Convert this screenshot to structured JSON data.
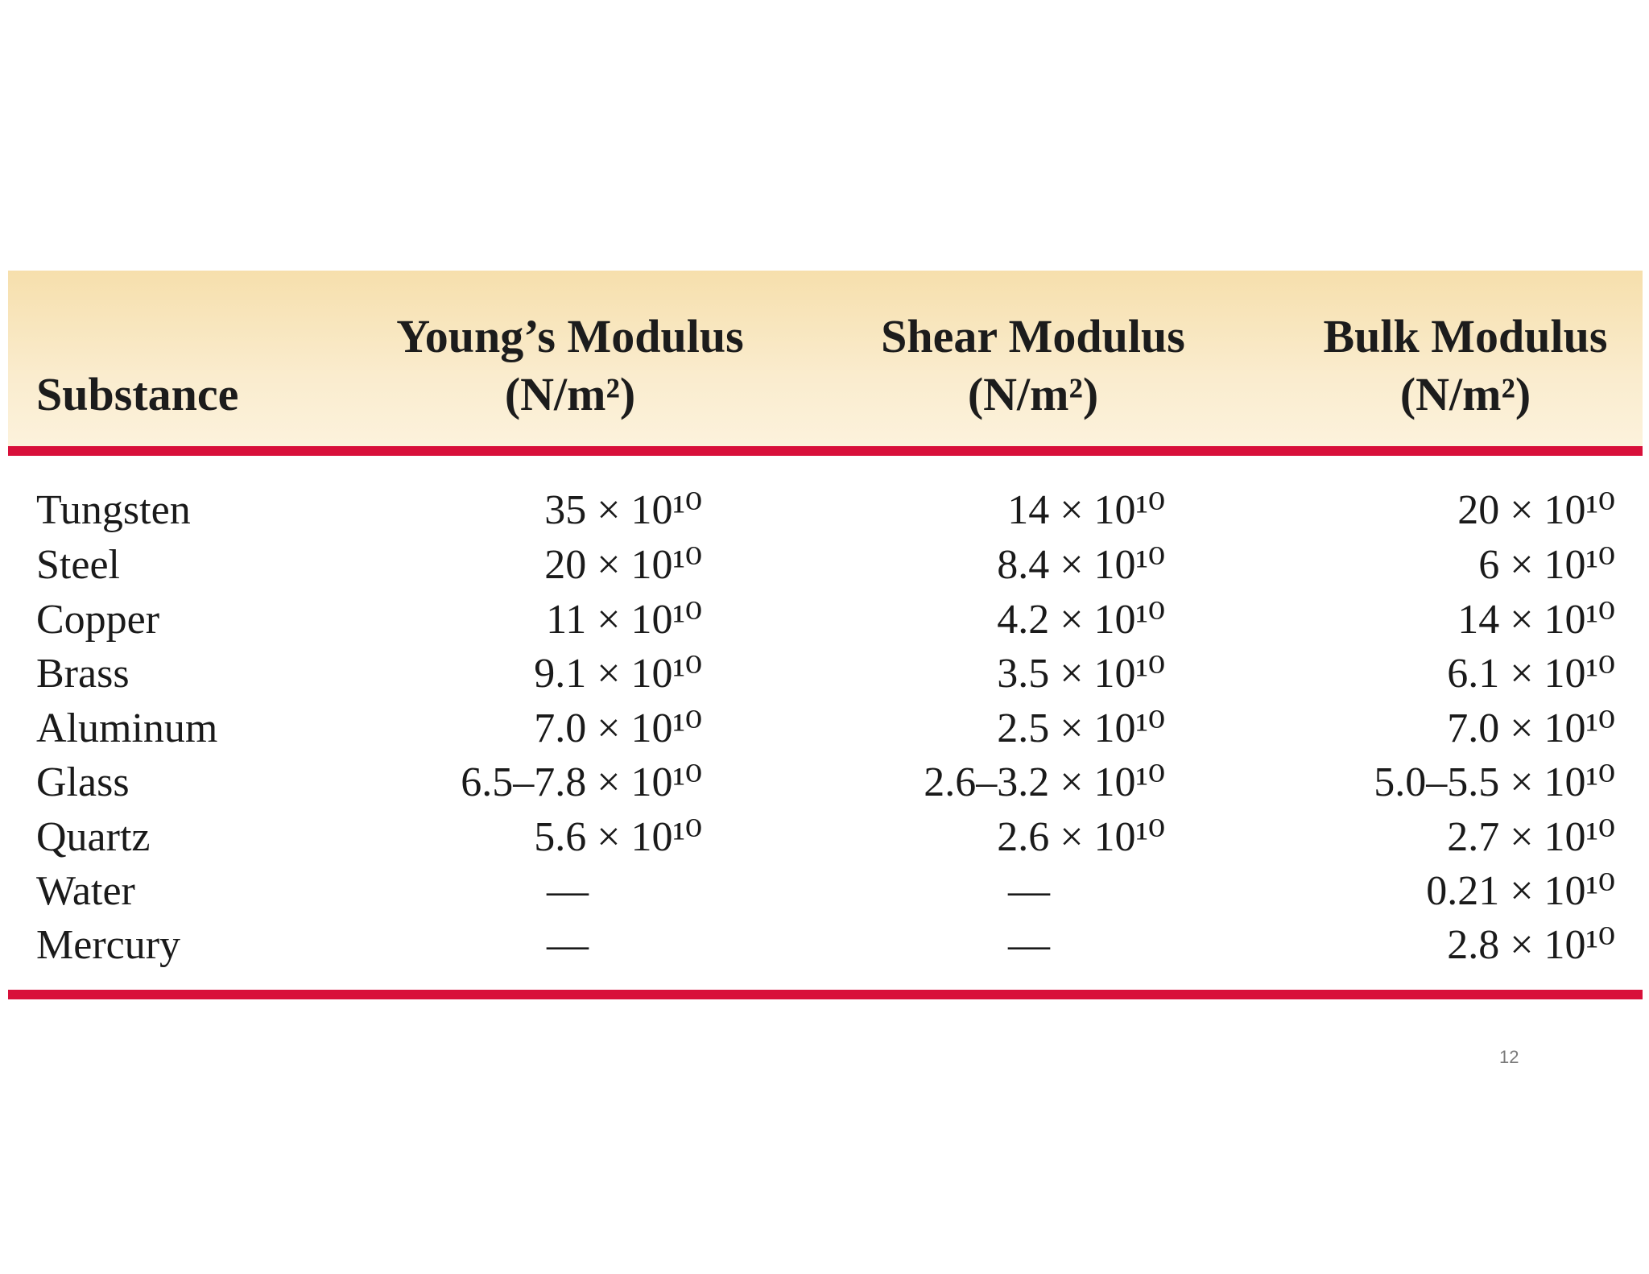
{
  "table": {
    "headers": {
      "substance": "Substance",
      "young_line1": "Young’s Modulus",
      "young_line2": "(N/m²)",
      "shear_line1": "Shear Modulus",
      "shear_line2": "(N/m²)",
      "bulk_line1": "Bulk Modulus",
      "bulk_line2": "(N/m²)"
    },
    "rows": [
      {
        "substance": "Tungsten",
        "young": "35 × 10¹⁰",
        "shear": "14 × 10¹⁰",
        "bulk": "20 × 10¹⁰"
      },
      {
        "substance": "Steel",
        "young": "20 × 10¹⁰",
        "shear": "8.4 × 10¹⁰",
        "bulk": "6 × 10¹⁰"
      },
      {
        "substance": "Copper",
        "young": "11 × 10¹⁰",
        "shear": "4.2 × 10¹⁰",
        "bulk": "14 × 10¹⁰"
      },
      {
        "substance": "Brass",
        "young": "9.1 × 10¹⁰",
        "shear": "3.5 × 10¹⁰",
        "bulk": "6.1 × 10¹⁰"
      },
      {
        "substance": "Aluminum",
        "young": "7.0 × 10¹⁰",
        "shear": "2.5 × 10¹⁰",
        "bulk": "7.0 × 10¹⁰"
      },
      {
        "substance": "Glass",
        "young": "6.5–7.8 × 10¹⁰",
        "shear": "2.6–3.2 × 10¹⁰",
        "bulk": "5.0–5.5 × 10¹⁰"
      },
      {
        "substance": "Quartz",
        "young": "5.6 × 10¹⁰",
        "shear": "2.6 × 10¹⁰",
        "bulk": "2.7 × 10¹⁰"
      },
      {
        "substance": "Water",
        "young": "—",
        "shear": "—",
        "bulk": "0.21 × 10¹⁰"
      },
      {
        "substance": "Mercury",
        "young": "—",
        "shear": "—",
        "bulk": "2.8 × 10¹⁰"
      }
    ]
  },
  "page_number": "12",
  "colors": {
    "header_band": "#f6dfac",
    "rule": "#d8103a"
  }
}
